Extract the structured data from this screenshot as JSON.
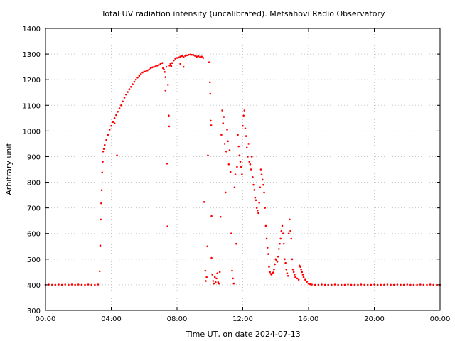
{
  "chart_data": {
    "type": "scatter",
    "title": "Total UV radiation intensity (uncalibrated). Metsähovi Radio Observatory",
    "xlabel": "Time UT, on date 2024-07-13",
    "ylabel": "Arbitrary unit",
    "xlim": [
      0,
      24
    ],
    "ylim": [
      300,
      1400
    ],
    "grid": true,
    "marker_color": "#ff0000",
    "x_ticks": [
      {
        "value": 0,
        "label": "00:00"
      },
      {
        "value": 4,
        "label": "04:00"
      },
      {
        "value": 8,
        "label": "08:00"
      },
      {
        "value": 12,
        "label": "12:00"
      },
      {
        "value": 16,
        "label": "16:00"
      },
      {
        "value": 20,
        "label": "20:00"
      },
      {
        "value": 24,
        "label": "00:00"
      }
    ],
    "y_ticks": [
      300,
      400,
      500,
      600,
      700,
      800,
      900,
      1000,
      1100,
      1200,
      1300,
      1400
    ],
    "series": [
      {
        "points": [
          [
            0.0,
            400
          ],
          [
            0.2,
            401
          ],
          [
            0.4,
            400
          ],
          [
            0.6,
            400
          ],
          [
            0.8,
            401
          ],
          [
            1.0,
            400
          ],
          [
            1.2,
            401
          ],
          [
            1.4,
            400
          ],
          [
            1.6,
            401
          ],
          [
            1.8,
            400
          ],
          [
            2.0,
            401
          ],
          [
            2.2,
            400
          ],
          [
            2.4,
            400
          ],
          [
            2.6,
            401
          ],
          [
            2.8,
            400
          ],
          [
            3.0,
            400
          ],
          [
            3.2,
            401
          ],
          [
            3.3,
            453
          ],
          [
            3.33,
            553
          ],
          [
            3.36,
            655
          ],
          [
            3.39,
            718
          ],
          [
            3.42,
            769
          ],
          [
            3.45,
            838
          ],
          [
            3.48,
            880
          ],
          [
            3.5,
            920
          ],
          [
            3.55,
            930
          ],
          [
            3.6,
            945
          ],
          [
            3.7,
            965
          ],
          [
            3.8,
            985
          ],
          [
            3.9,
            1005
          ],
          [
            4.0,
            1020
          ],
          [
            4.1,
            1035
          ],
          [
            4.2,
            1050
          ],
          [
            4.3,
            1062
          ],
          [
            4.4,
            1075
          ],
          [
            4.5,
            1088
          ],
          [
            4.6,
            1100
          ],
          [
            4.7,
            1115
          ],
          [
            4.8,
            1130
          ],
          [
            4.9,
            1142
          ],
          [
            5.0,
            1152
          ],
          [
            5.1,
            1163
          ],
          [
            5.2,
            1172
          ],
          [
            5.3,
            1182
          ],
          [
            5.4,
            1192
          ],
          [
            5.5,
            1200
          ],
          [
            5.6,
            1208
          ],
          [
            5.7,
            1215
          ],
          [
            5.8,
            1222
          ],
          [
            5.9,
            1228
          ],
          [
            6.0,
            1232
          ],
          [
            6.1,
            1232
          ],
          [
            6.2,
            1236
          ],
          [
            6.3,
            1240
          ],
          [
            6.4,
            1245
          ],
          [
            6.5,
            1248
          ],
          [
            6.6,
            1250
          ],
          [
            6.7,
            1252
          ],
          [
            6.8,
            1255
          ],
          [
            6.9,
            1258
          ],
          [
            7.0,
            1262
          ],
          [
            7.1,
            1265
          ],
          [
            4.2,
            1030
          ],
          [
            4.35,
            905
          ],
          [
            7.15,
            1245
          ],
          [
            7.2,
            1240
          ],
          [
            7.25,
            1230
          ],
          [
            7.3,
            1210
          ],
          [
            7.3,
            1158
          ],
          [
            7.35,
            1250
          ],
          [
            7.4,
            873
          ],
          [
            7.42,
            628
          ],
          [
            7.45,
            1180
          ],
          [
            7.5,
            1060
          ],
          [
            7.52,
            1018
          ],
          [
            7.55,
            1255
          ],
          [
            7.6,
            1262
          ],
          [
            7.65,
            1253
          ],
          [
            7.7,
            1265
          ],
          [
            7.8,
            1275
          ],
          [
            7.9,
            1282
          ],
          [
            8.0,
            1285
          ],
          [
            8.1,
            1287
          ],
          [
            8.2,
            1290
          ],
          [
            8.3,
            1292
          ],
          [
            8.4,
            1288
          ],
          [
            8.5,
            1293
          ],
          [
            8.6,
            1295
          ],
          [
            8.7,
            1297
          ],
          [
            8.8,
            1298
          ],
          [
            8.9,
            1297
          ],
          [
            9.0,
            1296
          ],
          [
            9.1,
            1293
          ],
          [
            9.2,
            1290
          ],
          [
            9.3,
            1292
          ],
          [
            9.4,
            1288
          ],
          [
            9.5,
            1290
          ],
          [
            9.6,
            1285
          ],
          [
            8.2,
            1262
          ],
          [
            8.4,
            1250
          ],
          [
            9.65,
            723
          ],
          [
            9.72,
            455
          ],
          [
            9.75,
            415
          ],
          [
            9.8,
            430
          ],
          [
            9.85,
            550
          ],
          [
            9.88,
            905
          ],
          [
            9.95,
            1268
          ],
          [
            10.0,
            1190
          ],
          [
            10.02,
            1145
          ],
          [
            10.05,
            1040
          ],
          [
            10.08,
            1022
          ],
          [
            10.1,
            668
          ],
          [
            10.1,
            505
          ],
          [
            10.15,
            440
          ],
          [
            10.2,
            415
          ],
          [
            10.25,
            405
          ],
          [
            10.3,
            430
          ],
          [
            10.35,
            410
          ],
          [
            10.4,
            425
          ],
          [
            10.45,
            445
          ],
          [
            10.5,
            410
          ],
          [
            10.55,
            405
          ],
          [
            10.6,
            450
          ],
          [
            10.65,
            665
          ],
          [
            10.7,
            985
          ],
          [
            10.75,
            1080
          ],
          [
            10.8,
            1030
          ],
          [
            10.85,
            1055
          ],
          [
            10.9,
            950
          ],
          [
            10.95,
            760
          ],
          [
            11.0,
            920
          ],
          [
            11.05,
            1005
          ],
          [
            11.1,
            960
          ],
          [
            11.15,
            870
          ],
          [
            11.2,
            925
          ],
          [
            11.25,
            840
          ],
          [
            11.3,
            600
          ],
          [
            11.35,
            455
          ],
          [
            11.4,
            425
          ],
          [
            11.45,
            405
          ],
          [
            11.5,
            780
          ],
          [
            11.55,
            830
          ],
          [
            11.6,
            560
          ],
          [
            11.65,
            860
          ],
          [
            11.7,
            985
          ],
          [
            11.75,
            940
          ],
          [
            11.8,
            905
          ],
          [
            11.85,
            880
          ],
          [
            11.9,
            860
          ],
          [
            11.95,
            830
          ],
          [
            12.0,
            1020
          ],
          [
            12.05,
            1060
          ],
          [
            12.1,
            1080
          ],
          [
            12.15,
            1010
          ],
          [
            12.2,
            980
          ],
          [
            12.25,
            935
          ],
          [
            12.3,
            900
          ],
          [
            12.35,
            950
          ],
          [
            12.4,
            880
          ],
          [
            12.45,
            870
          ],
          [
            12.5,
            850
          ],
          [
            12.55,
            900
          ],
          [
            12.6,
            820
          ],
          [
            12.65,
            790
          ],
          [
            12.7,
            770
          ],
          [
            12.75,
            740
          ],
          [
            12.8,
            730
          ],
          [
            12.85,
            700
          ],
          [
            12.9,
            690
          ],
          [
            12.95,
            680
          ],
          [
            13.0,
            720
          ],
          [
            13.05,
            780
          ],
          [
            13.1,
            850
          ],
          [
            13.15,
            830
          ],
          [
            13.2,
            810
          ],
          [
            13.25,
            790
          ],
          [
            13.3,
            760
          ],
          [
            13.35,
            700
          ],
          [
            13.4,
            630
          ],
          [
            13.45,
            580
          ],
          [
            13.5,
            545
          ],
          [
            13.55,
            520
          ],
          [
            13.6,
            470
          ],
          [
            13.65,
            450
          ],
          [
            13.7,
            443
          ],
          [
            13.75,
            440
          ],
          [
            13.8,
            445
          ],
          [
            13.85,
            448
          ],
          [
            13.9,
            460
          ],
          [
            13.95,
            480
          ],
          [
            14.0,
            500
          ],
          [
            14.05,
            495
          ],
          [
            14.1,
            490
          ],
          [
            14.15,
            510
          ],
          [
            14.2,
            540
          ],
          [
            14.25,
            560
          ],
          [
            14.3,
            580
          ],
          [
            14.35,
            610
          ],
          [
            14.4,
            630
          ],
          [
            14.45,
            600
          ],
          [
            14.5,
            560
          ],
          [
            14.55,
            500
          ],
          [
            14.6,
            485
          ],
          [
            14.65,
            460
          ],
          [
            14.7,
            445
          ],
          [
            14.75,
            435
          ],
          [
            14.8,
            600
          ],
          [
            14.85,
            655
          ],
          [
            14.9,
            610
          ],
          [
            14.95,
            580
          ],
          [
            15.0,
            500
          ],
          [
            15.05,
            460
          ],
          [
            15.1,
            450
          ],
          [
            15.15,
            440
          ],
          [
            15.2,
            430
          ],
          [
            15.3,
            425
          ],
          [
            15.4,
            420
          ],
          [
            15.45,
            475
          ],
          [
            15.5,
            470
          ],
          [
            15.55,
            460
          ],
          [
            15.6,
            450
          ],
          [
            15.65,
            440
          ],
          [
            15.7,
            430
          ],
          [
            15.8,
            420
          ],
          [
            15.9,
            412
          ],
          [
            16.0,
            405
          ],
          [
            16.1,
            402
          ],
          [
            16.2,
            401
          ],
          [
            16.4,
            400
          ],
          [
            16.6,
            400
          ],
          [
            16.8,
            401
          ],
          [
            17.0,
            400
          ],
          [
            17.2,
            400
          ],
          [
            17.4,
            400
          ],
          [
            17.6,
            401
          ],
          [
            17.8,
            400
          ],
          [
            18.0,
            400
          ],
          [
            18.2,
            400
          ],
          [
            18.4,
            401
          ],
          [
            18.6,
            400
          ],
          [
            18.8,
            400
          ],
          [
            19.0,
            400
          ],
          [
            19.2,
            401
          ],
          [
            19.4,
            400
          ],
          [
            19.6,
            400
          ],
          [
            19.8,
            400
          ],
          [
            20.0,
            401
          ],
          [
            20.2,
            400
          ],
          [
            20.4,
            400
          ],
          [
            20.6,
            400
          ],
          [
            20.8,
            401
          ],
          [
            21.0,
            400
          ],
          [
            21.2,
            400
          ],
          [
            21.4,
            401
          ],
          [
            21.6,
            400
          ],
          [
            21.8,
            400
          ],
          [
            22.0,
            401
          ],
          [
            22.2,
            400
          ],
          [
            22.4,
            400
          ],
          [
            22.6,
            400
          ],
          [
            22.8,
            401
          ],
          [
            23.0,
            400
          ],
          [
            23.2,
            400
          ],
          [
            23.4,
            401
          ],
          [
            23.6,
            400
          ],
          [
            23.8,
            400
          ],
          [
            24.0,
            400
          ]
        ]
      }
    ]
  }
}
